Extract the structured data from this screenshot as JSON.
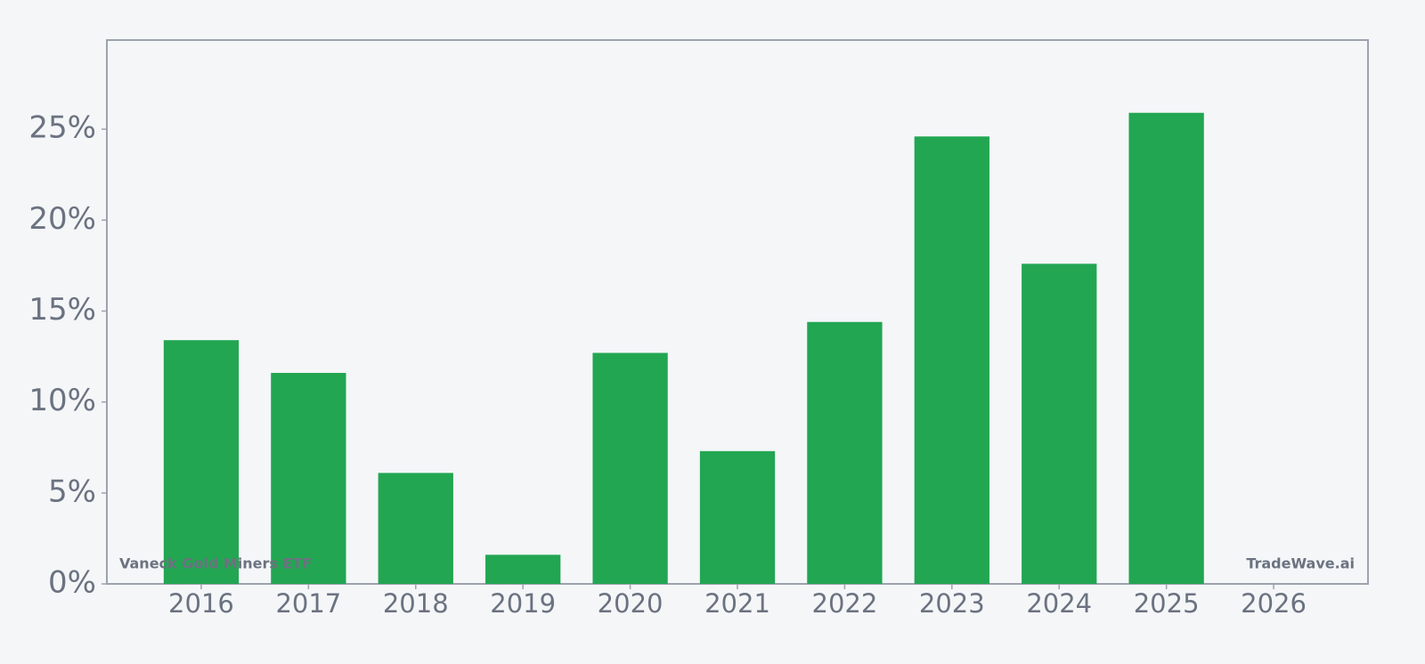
{
  "chart_data": {
    "type": "bar",
    "categories": [
      "2016",
      "2017",
      "2018",
      "2019",
      "2020",
      "2021",
      "2022",
      "2023",
      "2024",
      "2025",
      "2026"
    ],
    "values": [
      13.4,
      11.6,
      6.1,
      1.6,
      12.7,
      7.3,
      14.4,
      24.6,
      17.6,
      25.9,
      null
    ],
    "color": "#22a652",
    "ylim": [
      0,
      29.9
    ],
    "yticks": [
      {
        "value": 0,
        "label": "0%"
      },
      {
        "value": 5,
        "label": "5%"
      },
      {
        "value": 10,
        "label": "10%"
      },
      {
        "value": 15,
        "label": "15%"
      },
      {
        "value": 20,
        "label": "20%"
      },
      {
        "value": 25,
        "label": "25%"
      }
    ],
    "grid": false,
    "annotations": [
      "Vaneck Gold Miners ETF",
      "TradeWave.ai"
    ]
  }
}
